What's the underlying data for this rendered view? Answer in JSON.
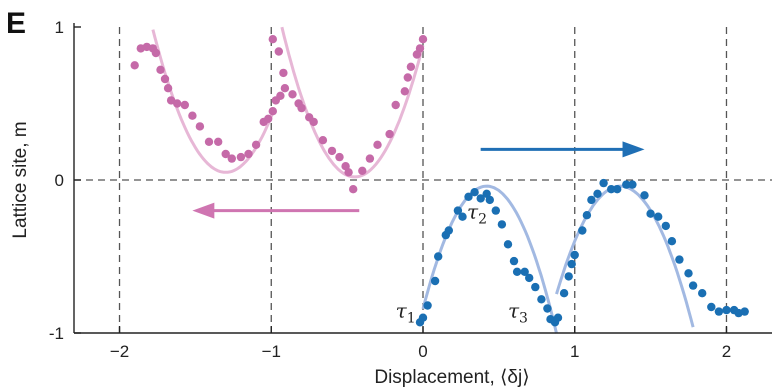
{
  "panel_label": "E",
  "colors": {
    "pink_points": "#c56aa8",
    "pink_fit": "#e7b7d6",
    "blue_points": "#1a6fb3",
    "blue_fit": "#a2b9e2",
    "pink_arrow": "#cf75b1",
    "blue_arrow": "#1f6fb5",
    "grid": "#555555"
  },
  "chart_data": {
    "type": "scatter",
    "title": "",
    "xlabel": "Displacement, ⟨δj⟩",
    "ylabel": "Lattice site, m",
    "xlim": [
      -2.3,
      2.3
    ],
    "ylim": [
      -1,
      1
    ],
    "xticks": [
      -2,
      -1,
      0,
      1,
      2
    ],
    "xtick_labels": [
      "−2",
      "−1",
      "0",
      "1",
      "2"
    ],
    "yticks": [
      -1,
      0,
      1
    ],
    "ytick_labels": [
      "-1",
      "0",
      "1"
    ],
    "grid": "dashed, at ticks",
    "series": [
      {
        "color": "pink",
        "points": [
          [
            -1.9,
            0.75
          ],
          [
            -1.86,
            0.86
          ],
          [
            -1.82,
            0.87
          ],
          [
            -1.78,
            0.86
          ],
          [
            -1.76,
            0.83
          ],
          [
            -1.73,
            0.72
          ],
          [
            -1.7,
            0.66
          ],
          [
            -1.68,
            0.6
          ],
          [
            -1.66,
            0.52
          ],
          [
            -1.62,
            0.5
          ],
          [
            -1.57,
            0.49
          ],
          [
            -1.52,
            0.42
          ],
          [
            -1.47,
            0.35
          ],
          [
            -1.41,
            0.25
          ],
          [
            -1.35,
            0.25
          ],
          [
            -1.3,
            0.17
          ],
          [
            -1.26,
            0.14
          ],
          [
            -1.2,
            0.15
          ],
          [
            -1.15,
            0.17
          ],
          [
            -1.1,
            0.23
          ],
          [
            -1.05,
            0.38
          ],
          [
            -1.02,
            0.4
          ],
          [
            -0.99,
            0.45
          ],
          [
            -0.97,
            0.52
          ],
          [
            -0.94,
            0.55
          ],
          [
            -0.92,
            0.7
          ],
          [
            -0.95,
            0.84
          ],
          [
            -0.99,
            0.92
          ],
          [
            -0.91,
            0.6
          ],
          [
            -0.86,
            0.56
          ],
          [
            -0.82,
            0.5
          ],
          [
            -0.8,
            0.47
          ],
          [
            -0.75,
            0.41
          ],
          [
            -0.72,
            0.38
          ],
          [
            -0.66,
            0.26
          ],
          [
            -0.6,
            0.19
          ],
          [
            -0.55,
            0.15
          ],
          [
            -0.51,
            0.09
          ],
          [
            -0.49,
            0.05
          ],
          [
            -0.46,
            -0.06
          ],
          [
            -0.4,
            0.06
          ],
          [
            -0.35,
            0.14
          ],
          [
            -0.3,
            0.23
          ],
          [
            -0.22,
            0.3
          ],
          [
            -0.18,
            0.49
          ],
          [
            -0.12,
            0.58
          ],
          [
            -0.1,
            0.67
          ],
          [
            -0.08,
            0.74
          ],
          [
            -0.04,
            0.82
          ],
          [
            -0.02,
            0.86
          ],
          [
            0.0,
            0.92
          ]
        ]
      },
      {
        "color": "blue",
        "points": [
          [
            -0.02,
            -0.93
          ],
          [
            0.0,
            -0.9
          ],
          [
            0.03,
            -0.82
          ],
          [
            0.08,
            -0.66
          ],
          [
            0.1,
            -0.5
          ],
          [
            0.15,
            -0.36
          ],
          [
            0.17,
            -0.33
          ],
          [
            0.23,
            -0.2
          ],
          [
            0.26,
            -0.24
          ],
          [
            0.3,
            -0.11
          ],
          [
            0.34,
            -0.08
          ],
          [
            0.38,
            -0.12
          ],
          [
            0.42,
            -0.09
          ],
          [
            0.44,
            -0.13
          ],
          [
            0.48,
            -0.2
          ],
          [
            0.52,
            -0.29
          ],
          [
            0.56,
            -0.42
          ],
          [
            0.6,
            -0.53
          ],
          [
            0.62,
            -0.6
          ],
          [
            0.67,
            -0.6
          ],
          [
            0.7,
            -0.64
          ],
          [
            0.74,
            -0.7
          ],
          [
            0.78,
            -0.78
          ],
          [
            0.82,
            -0.84
          ],
          [
            0.84,
            -0.91
          ],
          [
            0.87,
            -0.93
          ],
          [
            0.89,
            -0.9
          ],
          [
            0.93,
            -0.74
          ],
          [
            0.96,
            -0.63
          ],
          [
            0.98,
            -0.55
          ],
          [
            1.0,
            -0.49
          ],
          [
            1.05,
            -0.33
          ],
          [
            1.08,
            -0.23
          ],
          [
            1.11,
            -0.13
          ],
          [
            1.15,
            -0.09
          ],
          [
            1.19,
            -0.02
          ],
          [
            1.24,
            -0.06
          ],
          [
            1.28,
            -0.06
          ],
          [
            1.34,
            -0.03
          ],
          [
            1.38,
            -0.03
          ],
          [
            1.46,
            -0.1
          ],
          [
            1.5,
            -0.22
          ],
          [
            1.55,
            -0.24
          ],
          [
            1.6,
            -0.3
          ],
          [
            1.64,
            -0.4
          ],
          [
            1.69,
            -0.52
          ],
          [
            1.75,
            -0.61
          ],
          [
            1.78,
            -0.69
          ],
          [
            1.84,
            -0.74
          ],
          [
            1.9,
            -0.83
          ],
          [
            1.95,
            -0.86
          ],
          [
            2.0,
            -0.85
          ],
          [
            2.05,
            -0.85
          ],
          [
            2.08,
            -0.87
          ],
          [
            2.12,
            -0.86
          ]
        ]
      }
    ],
    "annotations": [
      {
        "base": "τ",
        "sub": "1",
        "x": -0.18,
        "y": -0.9
      },
      {
        "base": "τ",
        "sub": "2",
        "x": 0.29,
        "y": -0.25
      },
      {
        "base": "τ",
        "sub": "3",
        "x": 0.56,
        "y": -0.9
      }
    ]
  }
}
